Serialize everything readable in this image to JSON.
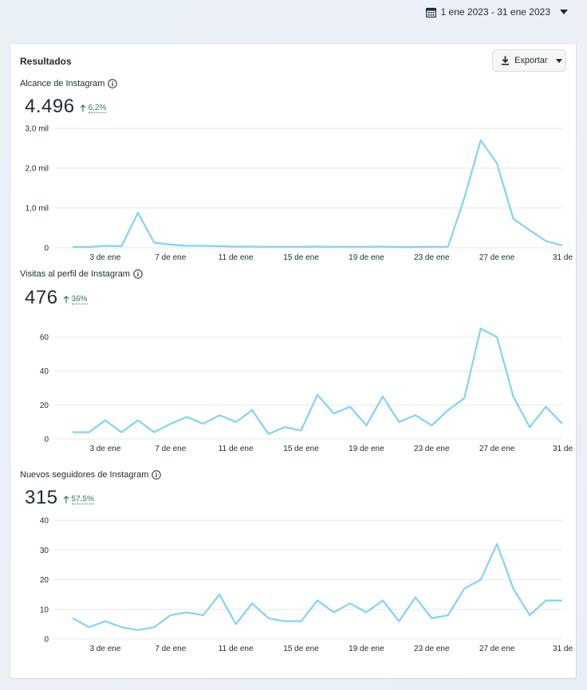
{
  "header": {
    "date_range": "1 ene 2023 - 31 ene 2023"
  },
  "card": {
    "title": "Resultados",
    "export_label": "Exportar"
  },
  "colors": {
    "line": "#7fd4f7",
    "positive": "#2f7d55",
    "grid": "#e6e8ea"
  },
  "icons": [
    "calendar-icon",
    "chevron-down-icon",
    "download-icon",
    "info-icon",
    "arrow-up-icon"
  ],
  "chart_data": [
    {
      "type": "line",
      "title": "Alcance de Instagram",
      "total": "4.496",
      "change": "6,2%",
      "x_tick_labels": [
        "3 de ene",
        "7 de ene",
        "11 de ene",
        "15 de ene",
        "19 de ene",
        "23 de ene",
        "27 de ene",
        "31 de"
      ],
      "y_tick_labels": [
        "0",
        "1,0 mil",
        "2,0 mil",
        "3,0 mil"
      ],
      "y_ticks": [
        0,
        1000,
        2000,
        3000
      ],
      "ylim": [
        0,
        3000
      ],
      "x": [
        1,
        2,
        3,
        4,
        5,
        6,
        7,
        8,
        9,
        10,
        11,
        12,
        13,
        14,
        15,
        16,
        17,
        18,
        19,
        20,
        21,
        22,
        23,
        24,
        25,
        26,
        27,
        28,
        29,
        30,
        31
      ],
      "series": [
        {
          "values": [
            20,
            20,
            50,
            40,
            880,
            130,
            80,
            50,
            50,
            40,
            30,
            30,
            25,
            25,
            25,
            30,
            25,
            25,
            25,
            30,
            20,
            20,
            25,
            25,
            1250,
            2700,
            2120,
            730,
            440,
            170,
            60
          ]
        }
      ],
      "grid": true
    },
    {
      "type": "line",
      "title": "Visitas al perfil de Instagram",
      "total": "476",
      "change": "36%",
      "x_tick_labels": [
        "3 de ene",
        "7 de ene",
        "11 de ene",
        "15 de ene",
        "19 de ene",
        "23 de ene",
        "27 de ene",
        "31 de"
      ],
      "y_tick_labels": [
        "0",
        "20",
        "40",
        "60"
      ],
      "y_ticks": [
        0,
        20,
        40,
        60
      ],
      "ylim": [
        0,
        60
      ],
      "x": [
        1,
        2,
        3,
        4,
        5,
        6,
        7,
        8,
        9,
        10,
        11,
        12,
        13,
        14,
        15,
        16,
        17,
        18,
        19,
        20,
        21,
        22,
        23,
        24,
        25,
        26,
        27,
        28,
        29,
        30,
        31
      ],
      "series": [
        {
          "values": [
            4,
            4,
            11,
            4,
            11,
            4,
            9,
            13,
            9,
            14,
            10,
            17,
            3,
            7,
            5,
            26,
            15,
            19,
            8,
            25,
            10,
            14,
            8,
            17,
            24,
            65,
            60,
            25,
            7,
            19,
            9
          ]
        }
      ],
      "grid": true
    },
    {
      "type": "line",
      "title": "Nuevos seguidores de Instagram",
      "total": "315",
      "change": "57,5%",
      "x_tick_labels": [
        "3 de ene",
        "7 de ene",
        "11 de ene",
        "15 de ene",
        "19 de ene",
        "23 de ene",
        "27 de ene",
        "31 de"
      ],
      "y_tick_labels": [
        "0",
        "10",
        "20",
        "30",
        "40"
      ],
      "y_ticks": [
        0,
        10,
        20,
        30,
        40
      ],
      "ylim": [
        0,
        40
      ],
      "x": [
        1,
        2,
        3,
        4,
        5,
        6,
        7,
        8,
        9,
        10,
        11,
        12,
        13,
        14,
        15,
        16,
        17,
        18,
        19,
        20,
        21,
        22,
        23,
        24,
        25,
        26,
        27,
        28,
        29,
        30,
        31
      ],
      "series": [
        {
          "values": [
            7,
            4,
            6,
            4,
            3,
            4,
            8,
            9,
            8,
            15,
            5,
            12,
            7,
            6,
            6,
            13,
            9,
            12,
            9,
            13,
            6,
            14,
            7,
            8,
            17,
            20,
            32,
            17,
            8,
            13,
            13
          ]
        }
      ],
      "grid": true
    }
  ]
}
